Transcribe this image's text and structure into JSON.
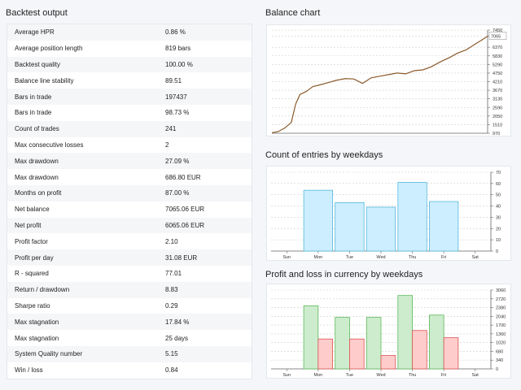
{
  "left": {
    "title": "Backtest output",
    "rows": [
      {
        "label": "Average HPR",
        "value": "0.86 %"
      },
      {
        "label": "Average position length",
        "value": "819 bars"
      },
      {
        "label": "Backtest quality",
        "value": "100.00 %"
      },
      {
        "label": "Balance line stability",
        "value": "89.51"
      },
      {
        "label": "Bars in trade",
        "value": "197437"
      },
      {
        "label": "Bars in trade",
        "value": "98.73 %"
      },
      {
        "label": "Count of trades",
        "value": "241"
      },
      {
        "label": "Max consecutive losses",
        "value": "2"
      },
      {
        "label": "Max drawdown",
        "value": "27.09 %"
      },
      {
        "label": "Max drawdown",
        "value": "686.80 EUR"
      },
      {
        "label": "Months on profit",
        "value": "87.00 %"
      },
      {
        "label": "Net balance",
        "value": "7065.06 EUR"
      },
      {
        "label": "Net profit",
        "value": "6065.06 EUR"
      },
      {
        "label": "Profit factor",
        "value": "2.10"
      },
      {
        "label": "Profit per day",
        "value": "31.08 EUR"
      },
      {
        "label": "R - squared",
        "value": "77.01"
      },
      {
        "label": "Return / drawdown",
        "value": "8.83"
      },
      {
        "label": "Sharpe ratio",
        "value": "0.29"
      },
      {
        "label": "Max stagnation",
        "value": "17.84 %"
      },
      {
        "label": "Max stagnation",
        "value": "25 days"
      },
      {
        "label": "System Quality number",
        "value": "5.15"
      },
      {
        "label": "Win / loss",
        "value": "0.84"
      }
    ]
  },
  "charts": {
    "balance": {
      "title": "Balance chart"
    },
    "entries": {
      "title": "Count of entries by weekdays"
    },
    "pnl": {
      "title": "Profit and loss in currency by weekdays"
    }
  },
  "colors": {
    "balance_line": "#8b5a2b",
    "entries_fill": "#cceeff",
    "entries_stroke": "#55b8dd",
    "profit_fill": "#cdeccd",
    "profit_stroke": "#5cb85c",
    "loss_fill": "#ffcccc",
    "loss_stroke": "#d9534f",
    "grid": "#cfcfcf"
  },
  "chart_data": [
    {
      "type": "line",
      "title": "Balance chart",
      "yticks": [
        970,
        1510,
        2050,
        2590,
        3130,
        3670,
        4210,
        4750,
        5290,
        5830,
        6370,
        7065,
        7450
      ],
      "ylim": [
        970,
        7450
      ],
      "last_value_label": "7065",
      "x": [
        0,
        0.03,
        0.06,
        0.09,
        0.11,
        0.13,
        0.16,
        0.19,
        0.22,
        0.26,
        0.3,
        0.34,
        0.38,
        0.42,
        0.46,
        0.5,
        0.54,
        0.58,
        0.62,
        0.66,
        0.7,
        0.74,
        0.78,
        0.82,
        0.86,
        0.9,
        0.94,
        0.97,
        1.0
      ],
      "y": [
        1000,
        1080,
        1300,
        1650,
        2800,
        3400,
        3600,
        3900,
        4000,
        4150,
        4300,
        4400,
        4380,
        4100,
        4450,
        4550,
        4650,
        4750,
        4700,
        4900,
        4950,
        5150,
        5450,
        5700,
        6000,
        6200,
        6550,
        6800,
        7065
      ]
    },
    {
      "type": "bar",
      "title": "Count of entries by weekdays",
      "categories": [
        "Sun",
        "Mon",
        "Tue",
        "Wed",
        "Thu",
        "Fri",
        "Sat"
      ],
      "values": [
        0,
        54,
        43,
        39,
        61,
        44,
        0
      ],
      "yticks": [
        0,
        10,
        20,
        30,
        40,
        50,
        60,
        70
      ],
      "ylim": [
        0,
        70
      ]
    },
    {
      "type": "bar",
      "title": "Profit and loss in currency by weekdays",
      "categories": [
        "Sun",
        "Mon",
        "Tue",
        "Wed",
        "Thu",
        "Fri",
        "Sat"
      ],
      "series": [
        {
          "values": [
            0,
            2450,
            2000,
            2000,
            2850,
            2090,
            0
          ]
        },
        {
          "values": [
            0,
            1160,
            1160,
            520,
            1490,
            1210,
            0
          ]
        }
      ],
      "yticks": [
        0,
        340,
        680,
        1020,
        1360,
        1700,
        2040,
        2380,
        2720,
        3060
      ],
      "ylim": [
        0,
        3060
      ]
    }
  ]
}
